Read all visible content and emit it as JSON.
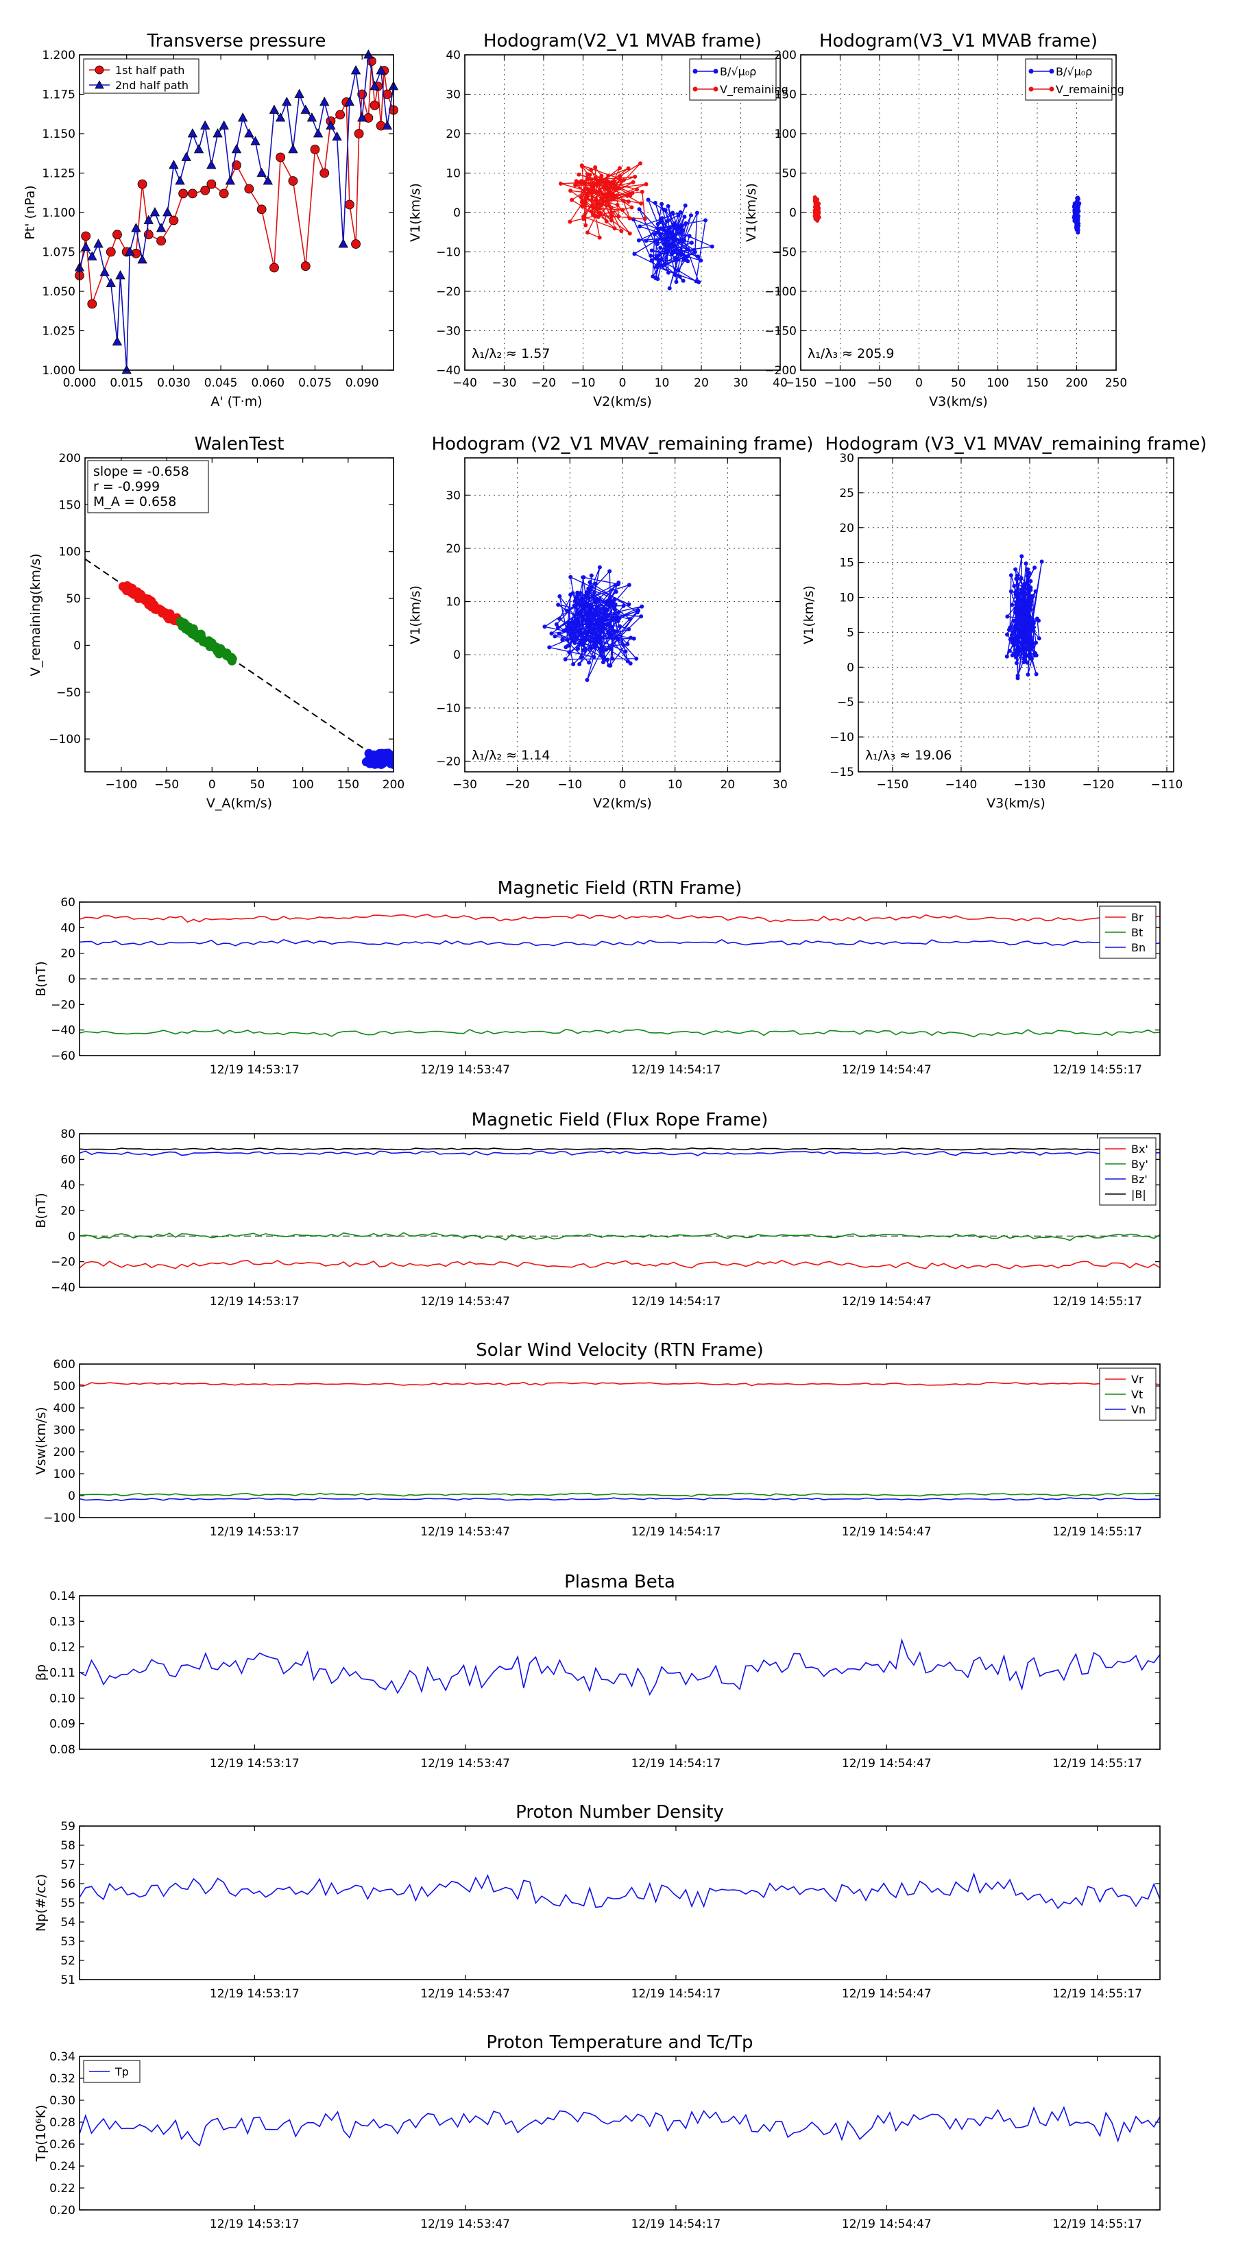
{
  "chart_data": [
    {
      "id": "transverse-pressure",
      "type": "line",
      "title": "Transverse pressure",
      "xlabel": "A' (T·m)",
      "ylabel": "Pt' (nPa)",
      "xlim": [
        0.0,
        0.1
      ],
      "ylim": [
        1.0,
        1.2
      ],
      "xticks": [
        "0.000",
        "0.015",
        "0.030",
        "0.045",
        "0.060",
        "0.075",
        "0.090"
      ],
      "yticks": [
        "1.000",
        "1.025",
        "1.050",
        "1.075",
        "1.100",
        "1.125",
        "1.150",
        "1.175",
        "1.200"
      ],
      "legend": [
        "1st half path",
        "2nd half path"
      ],
      "series": [
        {
          "name": "1st half path",
          "color": "#dd1111",
          "marker": "circle",
          "x": [
            0.0,
            0.002,
            0.004,
            0.01,
            0.012,
            0.015,
            0.018,
            0.02,
            0.022,
            0.026,
            0.03,
            0.033,
            0.036,
            0.04,
            0.042,
            0.046,
            0.05,
            0.054,
            0.058,
            0.062,
            0.064,
            0.068,
            0.072,
            0.075,
            0.078,
            0.08,
            0.083,
            0.085,
            0.086,
            0.088,
            0.089,
            0.09,
            0.092,
            0.093,
            0.094,
            0.095,
            0.096,
            0.097,
            0.098,
            0.1
          ],
          "y": [
            1.06,
            1.085,
            1.042,
            1.075,
            1.086,
            1.075,
            1.074,
            1.118,
            1.086,
            1.082,
            1.095,
            1.112,
            1.112,
            1.114,
            1.118,
            1.112,
            1.13,
            1.115,
            1.102,
            1.065,
            1.135,
            1.12,
            1.066,
            1.14,
            1.125,
            1.158,
            1.162,
            1.17,
            1.105,
            1.08,
            1.15,
            1.175,
            1.16,
            1.196,
            1.168,
            1.18,
            1.155,
            1.19,
            1.175,
            1.165
          ]
        },
        {
          "name": "2nd half path",
          "color": "#1111bb",
          "marker": "triangle",
          "x": [
            0.0,
            0.002,
            0.004,
            0.006,
            0.008,
            0.01,
            0.012,
            0.013,
            0.015,
            0.016,
            0.018,
            0.02,
            0.022,
            0.024,
            0.026,
            0.028,
            0.03,
            0.032,
            0.034,
            0.036,
            0.038,
            0.04,
            0.042,
            0.044,
            0.046,
            0.048,
            0.05,
            0.052,
            0.054,
            0.056,
            0.058,
            0.06,
            0.062,
            0.064,
            0.066,
            0.068,
            0.07,
            0.072,
            0.074,
            0.076,
            0.078,
            0.08,
            0.082,
            0.084,
            0.086,
            0.088,
            0.09,
            0.092,
            0.094,
            0.096,
            0.098,
            0.1
          ],
          "y": [
            1.065,
            1.078,
            1.072,
            1.08,
            1.062,
            1.055,
            1.018,
            1.06,
            1.0,
            1.075,
            1.09,
            1.07,
            1.095,
            1.1,
            1.09,
            1.1,
            1.13,
            1.12,
            1.135,
            1.15,
            1.14,
            1.155,
            1.13,
            1.15,
            1.155,
            1.12,
            1.14,
            1.16,
            1.15,
            1.145,
            1.125,
            1.12,
            1.165,
            1.16,
            1.17,
            1.14,
            1.175,
            1.165,
            1.16,
            1.15,
            1.17,
            1.155,
            1.148,
            1.08,
            1.17,
            1.19,
            1.16,
            1.2,
            1.18,
            1.19,
            1.155,
            1.18
          ]
        }
      ]
    },
    {
      "id": "hodogram-v2-v1-mvab",
      "type": "line",
      "title": "Hodogram(V2_V1 MVAB frame)",
      "xlabel": "V2(km/s)",
      "ylabel": "V1(km/s)",
      "xlim": [
        -40,
        40
      ],
      "ylim": [
        -40,
        40
      ],
      "xticks": [
        "−40",
        "−30",
        "−20",
        "−10",
        "0",
        "10",
        "20",
        "30",
        "40"
      ],
      "yticks": [
        "−40",
        "−30",
        "−20",
        "−10",
        "0",
        "10",
        "20",
        "30",
        "40"
      ],
      "legend": [
        "B/√μ₀ρ",
        "V_remaining"
      ],
      "annotation": "λ₁/λ₂ ≈ 1.57",
      "series": [
        {
          "name": "B/√μ₀ρ",
          "color": "#1111ee",
          "center": [
            12,
            -8
          ],
          "spread": [
            12,
            14
          ],
          "count": 120
        },
        {
          "name": "V_remaining",
          "color": "#ee1111",
          "center": [
            -5,
            5
          ],
          "spread": [
            14,
            12
          ],
          "count": 120
        }
      ]
    },
    {
      "id": "hodogram-v3-v1-mvab",
      "type": "line",
      "title": "Hodogram(V3_V1 MVAB frame)",
      "xlabel": "V3(km/s)",
      "ylabel": "V1(km/s)",
      "xlim": [
        -150,
        250
      ],
      "ylim": [
        -200,
        200
      ],
      "xticks": [
        "−150",
        "−100",
        "−50",
        "0",
        "50",
        "100",
        "150",
        "200",
        "250"
      ],
      "yticks": [
        "−200",
        "−150",
        "−100",
        "−50",
        "0",
        "50",
        "100",
        "150",
        "200"
      ],
      "legend": [
        "B/√μ₀ρ",
        "V_remaining"
      ],
      "annotation": "λ₁/λ₃ ≈ 205.9",
      "series": [
        {
          "name": "B/√μ₀ρ",
          "color": "#1111ee",
          "center": [
            200,
            -2
          ],
          "spread": [
            4,
            28
          ],
          "count": 120
        },
        {
          "name": "V_remaining",
          "color": "#ee1111",
          "center": [
            -130,
            2
          ],
          "spread": [
            4,
            20
          ],
          "count": 120
        }
      ]
    },
    {
      "id": "walen-test",
      "type": "scatter",
      "title": "WalenTest",
      "xlabel": "V_A(km/s)",
      "ylabel": "V_remaining(km/s)",
      "xlim": [
        -140,
        200
      ],
      "ylim": [
        -135,
        200
      ],
      "xticks": [
        "−100",
        "−50",
        "0",
        "50",
        "100",
        "150",
        "200"
      ],
      "yticks": [
        "−100",
        "−50",
        "0",
        "50",
        "100",
        "150",
        "200"
      ],
      "annotation_lines": [
        "slope = -0.658",
        "r = -0.999",
        "M_A = 0.658"
      ],
      "fit": {
        "slope": -0.658,
        "intercept": 0
      },
      "series": [
        {
          "name": "red",
          "color": "#ee1111",
          "x_range": [
            -100,
            -35
          ],
          "count": 60
        },
        {
          "name": "green",
          "color": "#118811",
          "x_range": [
            -35,
            25
          ],
          "count": 60
        },
        {
          "name": "blue",
          "color": "#1111ee",
          "x_range": [
            170,
            200
          ],
          "fixed_y": [
            -128,
            -115
          ],
          "count": 50
        }
      ]
    },
    {
      "id": "hodogram-v2-v1-mvav",
      "type": "line",
      "title": "Hodogram (V2_V1 MVAV_remaining frame)",
      "xlabel": "V2(km/s)",
      "ylabel": "V1(km/s)",
      "xlim": [
        -30,
        30
      ],
      "ylim": [
        -22,
        37
      ],
      "xticks": [
        "−30",
        "−20",
        "−10",
        "0",
        "10",
        "20",
        "30"
      ],
      "yticks": [
        "−20",
        "−10",
        "0",
        "10",
        "20",
        "30"
      ],
      "annotation": "λ₁/λ₂ ≈ 1.14",
      "series": [
        {
          "name": "V",
          "color": "#1111ee",
          "center": [
            -5,
            6
          ],
          "spread": [
            12,
            12
          ],
          "count": 200
        }
      ]
    },
    {
      "id": "hodogram-v3-v1-mvav",
      "type": "line",
      "title": "Hodogram (V3_V1 MVAV_remaining frame)",
      "xlabel": "V3(km/s)",
      "ylabel": "V1(km/s)",
      "xlim": [
        -155,
        -109
      ],
      "ylim": [
        -15,
        30
      ],
      "xticks": [
        "−150",
        "−140",
        "−130",
        "−120",
        "−110"
      ],
      "yticks": [
        "−15",
        "−10",
        "−5",
        "0",
        "5",
        "10",
        "15",
        "20",
        "25",
        "30"
      ],
      "annotation": "λ₁/λ₃ ≈ 19.06",
      "series": [
        {
          "name": "V",
          "color": "#1111ee",
          "center": [
            -131,
            7
          ],
          "spread": [
            3,
            11
          ],
          "count": 200
        }
      ]
    },
    {
      "id": "magnetic-field-rtn",
      "type": "line",
      "title": "Magnetic Field (RTN Frame)",
      "ylabel": "B(nT)",
      "ylim": [
        -60,
        60
      ],
      "yticks": [
        "−60",
        "−40",
        "−20",
        "0",
        "20",
        "40",
        "60"
      ],
      "xticks": [
        "12/19 14:53:17",
        "12/19 14:53:47",
        "12/19 14:54:17",
        "12/19 14:54:47",
        "12/19 14:55:17"
      ],
      "zero_line": true,
      "legend": [
        "Br",
        "Bt",
        "Bn"
      ],
      "series": [
        {
          "name": "Br",
          "color": "#ee1111",
          "level": 48,
          "noise": 3
        },
        {
          "name": "Bt",
          "color": "#118811",
          "level": -42,
          "noise": 3
        },
        {
          "name": "Bn",
          "color": "#1111ee",
          "level": 28,
          "noise": 3
        }
      ]
    },
    {
      "id": "magnetic-field-flux-rope",
      "type": "line",
      "title": "Magnetic Field (Flux Rope Frame)",
      "ylabel": "B(nT)",
      "ylim": [
        -40,
        80
      ],
      "yticks": [
        "−40",
        "−20",
        "0",
        "20",
        "40",
        "60",
        "80"
      ],
      "xticks": [
        "12/19 14:53:17",
        "12/19 14:53:47",
        "12/19 14:54:17",
        "12/19 14:54:47",
        "12/19 14:55:17"
      ],
      "zero_line": true,
      "legend": [
        "Bx'",
        "By'",
        "Bz'",
        "|B|"
      ],
      "series": [
        {
          "name": "Bx'",
          "color": "#ee1111",
          "level": -22,
          "noise": 4
        },
        {
          "name": "By'",
          "color": "#118811",
          "level": 0,
          "noise": 3
        },
        {
          "name": "Bz'",
          "color": "#1111ee",
          "level": 65,
          "noise": 2
        },
        {
          "name": "|B|",
          "color": "#000000",
          "level": 68,
          "noise": 1
        }
      ]
    },
    {
      "id": "solar-wind-velocity",
      "type": "line",
      "title": "Solar Wind Velocity (RTN Frame)",
      "ylabel": "Vsw(km/s)",
      "ylim": [
        -100,
        600
      ],
      "yticks": [
        "−100",
        "0",
        "100",
        "200",
        "300",
        "400",
        "500",
        "600"
      ],
      "xticks": [
        "12/19 14:53:17",
        "12/19 14:53:47",
        "12/19 14:54:17",
        "12/19 14:54:47",
        "12/19 14:55:17"
      ],
      "legend": [
        "Vr",
        "Vt",
        "Vn"
      ],
      "series": [
        {
          "name": "Vr",
          "color": "#ee1111",
          "level": 510,
          "noise": 8
        },
        {
          "name": "Vt",
          "color": "#118811",
          "level": 5,
          "noise": 8
        },
        {
          "name": "Vn",
          "color": "#1111ee",
          "level": -15,
          "noise": 8
        }
      ]
    },
    {
      "id": "plasma-beta",
      "type": "line",
      "title": "Plasma Beta",
      "ylabel": "βp",
      "ylim": [
        0.08,
        0.14
      ],
      "yticks": [
        "0.08",
        "0.09",
        "0.10",
        "0.11",
        "0.12",
        "0.13",
        "0.14"
      ],
      "xticks": [
        "12/19 14:53:17",
        "12/19 14:53:47",
        "12/19 14:54:17",
        "12/19 14:54:47",
        "12/19 14:55:17"
      ],
      "series": [
        {
          "name": "beta",
          "color": "#1111ee",
          "level": 0.112,
          "noise": 0.009
        }
      ]
    },
    {
      "id": "proton-density",
      "type": "line",
      "title": "Proton Number Density",
      "ylabel": "Np(#/cc)",
      "ylim": [
        51,
        59
      ],
      "yticks": [
        "51",
        "52",
        "53",
        "54",
        "55",
        "56",
        "57",
        "58",
        "59"
      ],
      "xticks": [
        "12/19 14:53:17",
        "12/19 14:53:47",
        "12/19 14:54:17",
        "12/19 14:54:47",
        "12/19 14:55:17"
      ],
      "series": [
        {
          "name": "Np",
          "color": "#1111ee",
          "level": 55.5,
          "noise": 1.0
        }
      ]
    },
    {
      "id": "proton-temperature",
      "type": "line",
      "title": "Proton Temperature and Tc/Tp",
      "ylabel": "Tp(10⁶K)",
      "ylim": [
        0.2,
        0.34
      ],
      "yticks": [
        "0.20",
        "0.22",
        "0.24",
        "0.26",
        "0.28",
        "0.30",
        "0.32",
        "0.34"
      ],
      "xticks": [
        "12/19 14:53:17",
        "12/19 14:53:47",
        "12/19 14:54:17",
        "12/19 14:54:47",
        "12/19 14:55:17"
      ],
      "legend": [
        "Tp"
      ],
      "series": [
        {
          "name": "Tp",
          "color": "#1111ee",
          "level": 0.28,
          "noise": 0.018
        }
      ]
    }
  ]
}
